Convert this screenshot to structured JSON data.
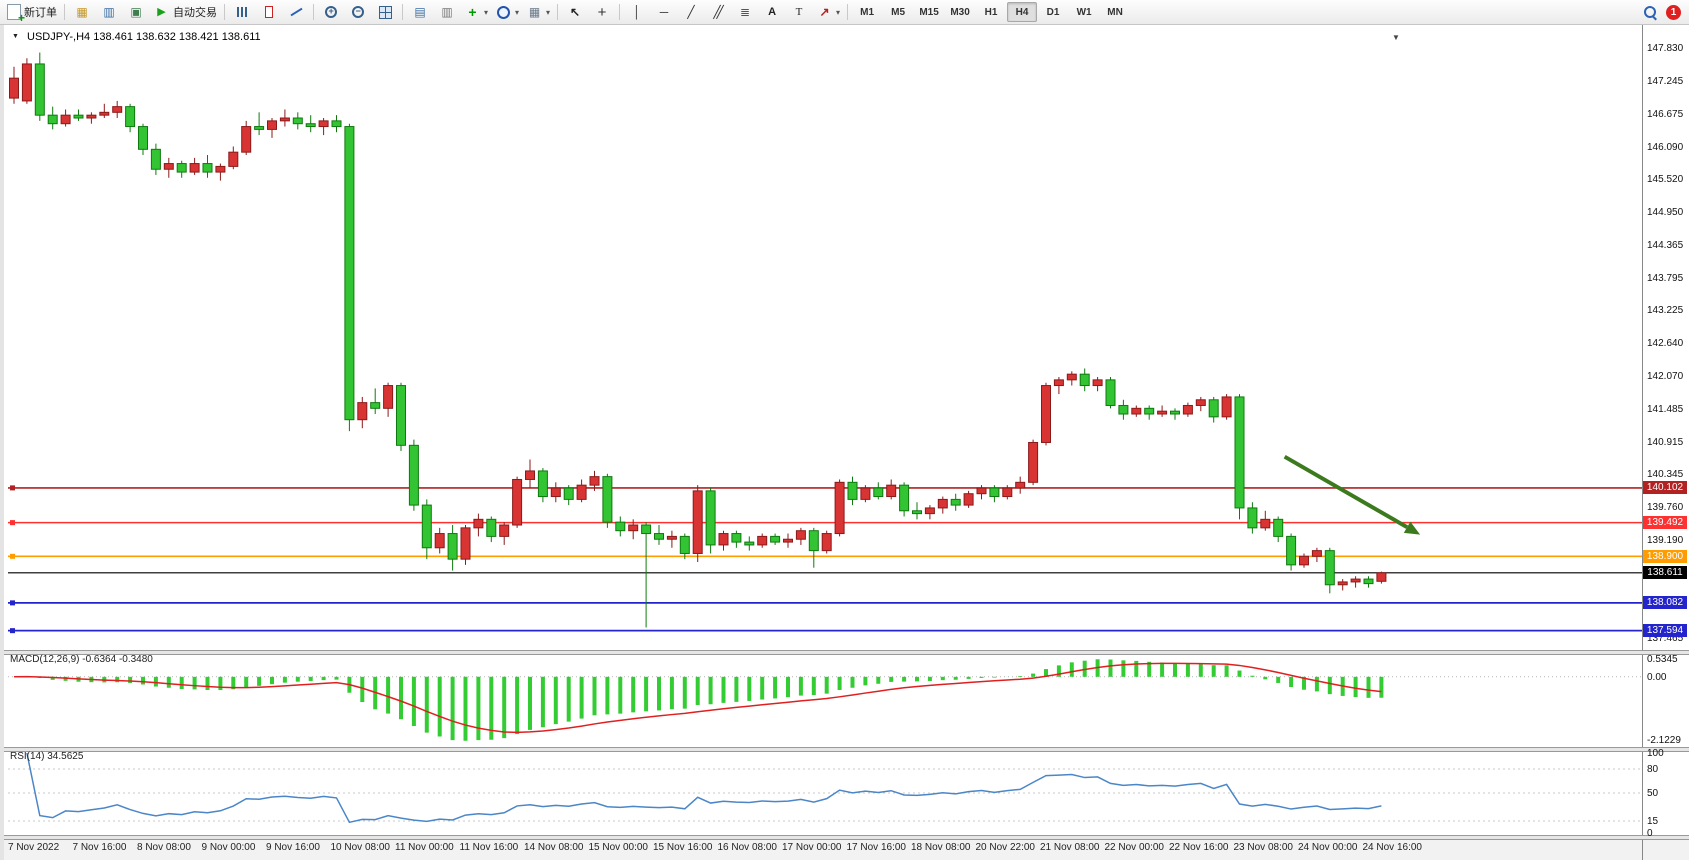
{
  "toolbar": {
    "new_order_label": "新订单",
    "auto_trading_label": "自动交易",
    "timeframes": [
      "M1",
      "M5",
      "M15",
      "M30",
      "H1",
      "H4",
      "D1",
      "W1",
      "MN"
    ],
    "active_timeframe": "H4",
    "notification_count": "1",
    "icons": [
      "new-order-icon",
      "profiles-icon",
      "market-watch-icon",
      "data-window-icon",
      "auto-trading-icon",
      "bar-chart-icon",
      "candlestick-chart-icon",
      "line-chart-icon",
      "zoom-in-icon",
      "zoom-out-icon",
      "tile-windows-icon",
      "new-chart-icon",
      "chart-list-icon",
      "indicators-icon",
      "periods-icon",
      "templates-icon",
      "cursor-icon",
      "crosshair-icon",
      "vertical-line-icon",
      "horizontal-line-icon",
      "trendline-icon",
      "channel-icon",
      "fibonacci-icon",
      "text-icon",
      "text-label-icon",
      "arrows-icon",
      "search-icon",
      "notification-badge"
    ]
  },
  "chart": {
    "symbol_title": "USDJPY-,H4",
    "ohlc_title": "138.461 138.632 138.421 138.611",
    "price_axis_labels": [
      "147.830",
      "147.245",
      "146.675",
      "146.090",
      "145.520",
      "144.950",
      "144.365",
      "143.795",
      "143.225",
      "142.640",
      "142.070",
      "141.485",
      "140.915",
      "140.345",
      "139.760",
      "139.190",
      "138.620",
      "138.035",
      "137.465"
    ],
    "hlines": [
      {
        "price": 140.102,
        "label": "140.102",
        "color": "#b22222",
        "width": 1.6,
        "handle": true
      },
      {
        "price": 139.492,
        "label": "139.492",
        "color": "#ff3030",
        "width": 1.4,
        "handle": true
      },
      {
        "price": 138.9,
        "label": "138.900",
        "color": "#ff9c00",
        "width": 1.6,
        "handle": true
      },
      {
        "price": 138.611,
        "label": "138.611",
        "color": "#000000",
        "width": 1.1,
        "handle": false
      },
      {
        "price": 138.082,
        "label": "138.082",
        "color": "#2424cc",
        "width": 1.7,
        "handle": true
      },
      {
        "price": 137.594,
        "label": "137.594",
        "color": "#2424cc",
        "width": 1.7,
        "handle": true
      }
    ],
    "arrow": {
      "from": {
        "index": 98.5,
        "price": 140.65
      },
      "to": {
        "index": 109,
        "price": 139.28
      },
      "color": "#3c7a1e"
    }
  },
  "macd": {
    "label": "MACD(12,26,9) -0.6364 -0.3480",
    "params": [
      12,
      26,
      9
    ],
    "scale_labels": [
      "0.5345",
      "0.00",
      "-2.1229"
    ]
  },
  "rsi": {
    "label": "RSI(14) 34.5625",
    "period": 14,
    "levels": [
      80,
      50,
      15
    ],
    "scale_labels": [
      "100",
      "80",
      "50",
      "15",
      "0"
    ]
  },
  "colors": {
    "up_fill": "#d83434",
    "up_stroke": "#8b1a1a",
    "down_fill": "#33c433",
    "down_stroke": "#0e7a0e",
    "macd_bar": "#33cc33",
    "macd_signal": "#e02020",
    "rsi_line": "#4a86c8",
    "arrow": "#3c7a1e"
  },
  "chart_data": {
    "type": "candlestick",
    "symbol": "USDJPY",
    "timeframe": "H4",
    "label_every": 5,
    "time_labels": [
      "7 Nov 2022",
      "7 Nov 16:00",
      "8 Nov 08:00",
      "9 Nov 00:00",
      "9 Nov 16:00",
      "10 Nov 08:00",
      "11 Nov 00:00",
      "11 Nov 16:00",
      "14 Nov 08:00",
      "15 Nov 00:00",
      "15 Nov 16:00",
      "16 Nov 08:00",
      "17 Nov 00:00",
      "17 Nov 16:00",
      "18 Nov 08:00",
      "20 Nov 22:00",
      "21 Nov 08:00",
      "22 Nov 00:00",
      "22 Nov 16:00",
      "23 Nov 08:00",
      "24 Nov 00:00",
      "24 Nov 16:00"
    ],
    "ohlc": [
      [
        146.95,
        147.5,
        146.85,
        147.3
      ],
      [
        146.9,
        147.65,
        146.85,
        147.55
      ],
      [
        147.55,
        147.75,
        146.55,
        146.65
      ],
      [
        146.65,
        146.8,
        146.4,
        146.5
      ],
      [
        146.5,
        146.75,
        146.45,
        146.65
      ],
      [
        146.65,
        146.75,
        146.55,
        146.6
      ],
      [
        146.6,
        146.7,
        146.5,
        146.65
      ],
      [
        146.65,
        146.85,
        146.6,
        146.7
      ],
      [
        146.7,
        146.9,
        146.6,
        146.8
      ],
      [
        146.8,
        146.85,
        146.35,
        146.45
      ],
      [
        146.45,
        146.5,
        145.95,
        146.05
      ],
      [
        146.05,
        146.15,
        145.6,
        145.7
      ],
      [
        145.7,
        145.9,
        145.55,
        145.8
      ],
      [
        145.8,
        145.85,
        145.55,
        145.65
      ],
      [
        145.65,
        145.9,
        145.6,
        145.8
      ],
      [
        145.8,
        145.95,
        145.55,
        145.65
      ],
      [
        145.65,
        145.8,
        145.5,
        145.75
      ],
      [
        145.75,
        146.1,
        145.7,
        146.0
      ],
      [
        146.0,
        146.55,
        145.95,
        146.45
      ],
      [
        146.45,
        146.7,
        146.3,
        146.4
      ],
      [
        146.4,
        146.6,
        146.25,
        146.55
      ],
      [
        146.55,
        146.75,
        146.45,
        146.6
      ],
      [
        146.6,
        146.7,
        146.4,
        146.5
      ],
      [
        146.5,
        146.65,
        146.35,
        146.45
      ],
      [
        146.45,
        146.6,
        146.3,
        146.55
      ],
      [
        146.55,
        146.65,
        146.35,
        146.45
      ],
      [
        146.45,
        146.5,
        141.1,
        141.3
      ],
      [
        141.3,
        141.7,
        141.15,
        141.6
      ],
      [
        141.6,
        141.85,
        141.4,
        141.5
      ],
      [
        141.5,
        141.95,
        141.35,
        141.9
      ],
      [
        141.9,
        141.95,
        140.75,
        140.85
      ],
      [
        140.85,
        140.95,
        139.7,
        139.8
      ],
      [
        139.8,
        139.9,
        138.85,
        139.05
      ],
      [
        139.05,
        139.4,
        138.95,
        139.3
      ],
      [
        139.3,
        139.45,
        138.65,
        138.85
      ],
      [
        138.85,
        139.45,
        138.75,
        139.4
      ],
      [
        139.4,
        139.65,
        139.25,
        139.55
      ],
      [
        139.55,
        139.6,
        139.15,
        139.25
      ],
      [
        139.25,
        139.5,
        139.1,
        139.45
      ],
      [
        139.45,
        140.3,
        139.4,
        140.25
      ],
      [
        140.25,
        140.6,
        140.1,
        140.4
      ],
      [
        140.4,
        140.45,
        139.85,
        139.95
      ],
      [
        139.95,
        140.2,
        139.85,
        140.1
      ],
      [
        140.1,
        140.15,
        139.8,
        139.9
      ],
      [
        139.9,
        140.25,
        139.85,
        140.15
      ],
      [
        140.15,
        140.4,
        140.05,
        140.3
      ],
      [
        140.3,
        140.35,
        139.4,
        139.5
      ],
      [
        139.5,
        139.6,
        139.25,
        139.35
      ],
      [
        139.35,
        139.55,
        139.2,
        139.45
      ],
      [
        139.45,
        139.5,
        137.65,
        139.3
      ],
      [
        139.3,
        139.45,
        139.1,
        139.2
      ],
      [
        139.2,
        139.35,
        139.05,
        139.25
      ],
      [
        139.25,
        139.3,
        138.85,
        138.95
      ],
      [
        138.95,
        140.15,
        138.8,
        140.05
      ],
      [
        140.05,
        140.1,
        138.95,
        139.1
      ],
      [
        139.1,
        139.35,
        139.0,
        139.3
      ],
      [
        139.3,
        139.35,
        139.05,
        139.15
      ],
      [
        139.15,
        139.25,
        139.0,
        139.1
      ],
      [
        139.1,
        139.3,
        139.05,
        139.25
      ],
      [
        139.25,
        139.3,
        139.1,
        139.15
      ],
      [
        139.15,
        139.3,
        139.05,
        139.2
      ],
      [
        139.2,
        139.4,
        139.1,
        139.35
      ],
      [
        139.35,
        139.4,
        138.7,
        139.0
      ],
      [
        139.0,
        139.35,
        138.95,
        139.3
      ],
      [
        139.3,
        140.25,
        139.25,
        140.2
      ],
      [
        140.2,
        140.3,
        139.8,
        139.9
      ],
      [
        139.9,
        140.15,
        139.85,
        140.1
      ],
      [
        140.1,
        140.2,
        139.9,
        139.95
      ],
      [
        139.95,
        140.25,
        139.9,
        140.15
      ],
      [
        140.15,
        140.2,
        139.6,
        139.7
      ],
      [
        139.7,
        139.85,
        139.55,
        139.65
      ],
      [
        139.65,
        139.8,
        139.55,
        139.75
      ],
      [
        139.75,
        139.95,
        139.65,
        139.9
      ],
      [
        139.9,
        140.0,
        139.7,
        139.8
      ],
      [
        139.8,
        140.05,
        139.75,
        140.0
      ],
      [
        140.0,
        140.15,
        139.9,
        140.1
      ],
      [
        140.1,
        140.15,
        139.85,
        139.95
      ],
      [
        139.95,
        140.15,
        139.9,
        140.1
      ],
      [
        140.1,
        140.3,
        140.0,
        140.2
      ],
      [
        140.2,
        140.95,
        140.15,
        140.9
      ],
      [
        140.9,
        141.95,
        140.85,
        141.9
      ],
      [
        141.9,
        142.05,
        141.75,
        142.0
      ],
      [
        142.0,
        142.15,
        141.9,
        142.1
      ],
      [
        142.1,
        142.2,
        141.8,
        141.9
      ],
      [
        141.9,
        142.05,
        141.8,
        142.0
      ],
      [
        142.0,
        142.05,
        141.5,
        141.55
      ],
      [
        141.55,
        141.65,
        141.3,
        141.4
      ],
      [
        141.4,
        141.55,
        141.35,
        141.5
      ],
      [
        141.5,
        141.55,
        141.3,
        141.4
      ],
      [
        141.4,
        141.55,
        141.35,
        141.45
      ],
      [
        141.45,
        141.5,
        141.3,
        141.4
      ],
      [
        141.4,
        141.6,
        141.35,
        141.55
      ],
      [
        141.55,
        141.7,
        141.45,
        141.65
      ],
      [
        141.65,
        141.7,
        141.25,
        141.35
      ],
      [
        141.35,
        141.75,
        141.3,
        141.7
      ],
      [
        141.7,
        141.75,
        139.55,
        139.75
      ],
      [
        139.75,
        139.85,
        139.3,
        139.4
      ],
      [
        139.4,
        139.7,
        139.35,
        139.55
      ],
      [
        139.55,
        139.6,
        139.15,
        139.25
      ],
      [
        139.25,
        139.3,
        138.65,
        138.75
      ],
      [
        138.75,
        138.95,
        138.7,
        138.9
      ],
      [
        138.9,
        139.05,
        138.8,
        139.0
      ],
      [
        139.0,
        139.05,
        138.25,
        138.4
      ],
      [
        138.4,
        138.5,
        138.3,
        138.45
      ],
      [
        138.45,
        138.55,
        138.35,
        138.5
      ],
      [
        138.5,
        138.55,
        138.35,
        138.42
      ],
      [
        138.461,
        138.632,
        138.421,
        138.611
      ]
    ]
  }
}
